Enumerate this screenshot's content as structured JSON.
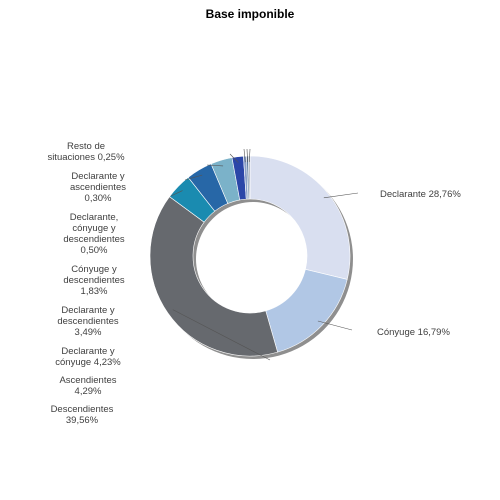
{
  "chart_data": {
    "type": "pie",
    "donut": true,
    "title": "Base imponible",
    "slices": [
      {
        "label": "Declarante",
        "value": 28.76,
        "display": "28,76%",
        "color": "#d9dff0"
      },
      {
        "label": "Cónyuge",
        "value": 16.79,
        "display": "16,79%",
        "color": "#b1c7e5"
      },
      {
        "label": "Descendientes",
        "value": 39.56,
        "display": "39,56%",
        "color": "#66696e"
      },
      {
        "label": "Ascendientes",
        "value": 4.29,
        "display": "4,29%",
        "color": "#1a8bb0"
      },
      {
        "label": "Declarante y cónyuge",
        "value": 4.23,
        "display": "4,23%",
        "color": "#2767a7"
      },
      {
        "label": "Declarante y descendientes",
        "value": 3.49,
        "display": "3,49%",
        "color": "#7bb2c9"
      },
      {
        "label": "Cónyuge y descendientes",
        "value": 1.83,
        "display": "1,83%",
        "color": "#2b46a8"
      },
      {
        "label": "Declarante, cónyuge y descendientes",
        "value": 0.5,
        "display": "0,50%",
        "color": "#8aa0c8"
      },
      {
        "label": "Declarante y ascendientes",
        "value": 0.3,
        "display": "0,30%",
        "color": "#4d6e96"
      },
      {
        "label": "Resto de situaciones",
        "value": 0.25,
        "display": "0,25%",
        "color": "#9aa3ad"
      }
    ],
    "legend": "none"
  }
}
